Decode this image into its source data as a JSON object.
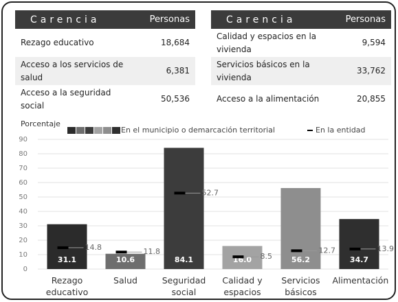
{
  "tables": [
    {
      "headers": [
        "Carencia",
        "Personas"
      ],
      "rows": [
        [
          "Rezago educativo",
          "18,684"
        ],
        [
          "Acceso a los servicios de salud",
          "6,381"
        ],
        [
          "Acceso a la seguridad social",
          "50,536"
        ]
      ]
    },
    {
      "headers": [
        "Carencia",
        "Personas"
      ],
      "rows": [
        [
          "Calidad y espacios en la vivienda",
          "9,594"
        ],
        [
          "Servicios básicos en la vivienda",
          "33,762"
        ],
        [
          "Acceso a la alimentación",
          "20,855"
        ]
      ]
    }
  ],
  "chart_data": {
    "type": "bar",
    "y_label": "Porcentaje",
    "categories": [
      "Rezago educativo",
      "Salud",
      "Seguridad social",
      "Calidad y espacios",
      "Servicios básicos",
      "Alimentación"
    ],
    "series": [
      {
        "name": "En el municipio o demarcación territorial",
        "colors": [
          "#2b2b2b",
          "#6e6e6e",
          "#3c3c3c",
          "#a3a3a3",
          "#8e8e8e",
          "#2f2f2f"
        ],
        "values": [
          31.1,
          10.6,
          84.1,
          16.0,
          56.2,
          34.7
        ],
        "value_labels": [
          "31.1",
          "10.6",
          "84.1",
          "16.0",
          "56.2",
          "34.7"
        ]
      },
      {
        "name": "En la entidad",
        "color": "#000000",
        "values": [
          14.8,
          11.8,
          52.7,
          8.5,
          12.7,
          13.9
        ]
      }
    ],
    "ylim": [
      0,
      90
    ],
    "yticks": [
      0,
      10,
      20,
      30,
      40,
      50,
      60,
      70,
      80,
      90
    ],
    "grid": true
  }
}
